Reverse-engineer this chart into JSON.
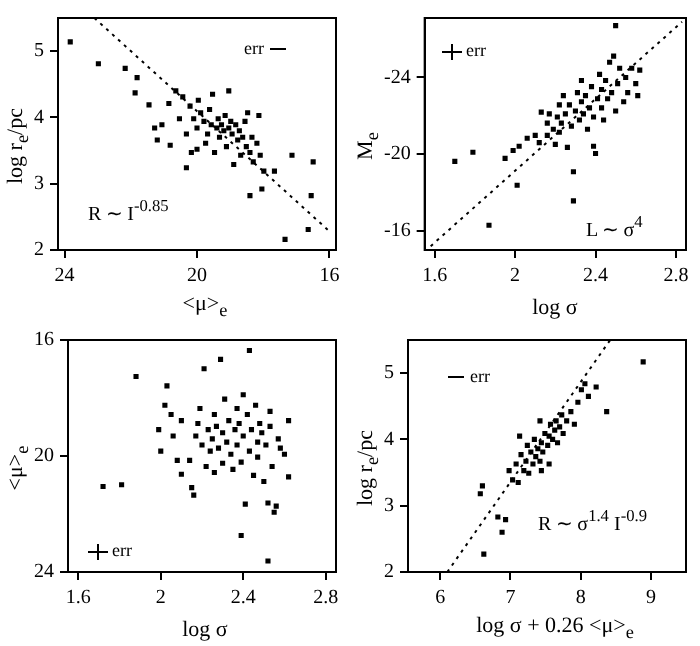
{
  "chart_data": [
    {
      "type": "scatter",
      "xlabel": "<μ>$_{e}$",
      "ylabel": "log r$_{e}$/pc",
      "xlim": [
        24.2,
        15.8
      ],
      "ylim": [
        2,
        5.5
      ],
      "xticks": [
        24,
        20,
        16
      ],
      "yticks": [
        2,
        3,
        4,
        5
      ],
      "marker": "square",
      "annotations": [
        "err",
        "R ∼ I$^{-0.85}$"
      ],
      "series": [
        {
          "color": "#000000",
          "x": [
            23.83,
            22.98,
            22.17,
            21.87,
            21.81,
            21.45,
            21.28,
            21.2,
            21.06,
            20.85,
            20.81,
            20.64,
            20.53,
            20.43,
            20.32,
            20.21,
            20.17,
            20.1,
            20.0,
            19.96,
            19.89,
            19.79,
            19.74,
            19.68,
            19.62,
            19.57,
            19.53,
            19.47,
            19.4,
            19.36,
            19.32,
            19.26,
            19.19,
            19.15,
            19.11,
            19.04,
            18.98,
            18.94,
            18.89,
            18.83,
            18.77,
            18.72,
            18.68,
            18.62,
            18.55,
            18.51,
            18.47,
            18.4,
            18.34,
            18.3,
            18.19,
            18.13,
            18.09,
            18.04,
            17.98,
            17.66,
            18.4,
            17.13,
            16.49,
            17.34,
            16.64,
            16.55,
            19.04,
            20.0,
            20.32
          ],
          "values": [
            5.14,
            4.81,
            4.74,
            4.37,
            4.6,
            4.19,
            3.84,
            3.66,
            3.89,
            4.21,
            3.58,
            4.4,
            3.98,
            4.31,
            3.75,
            4.17,
            3.47,
            3.98,
            3.84,
            4.26,
            4.07,
            3.94,
            3.61,
            3.75,
            4.12,
            3.89,
            4.35,
            3.47,
            3.84,
            3.98,
            3.7,
            3.89,
            3.8,
            4.03,
            3.56,
            3.84,
            3.94,
            3.75,
            3.29,
            3.89,
            3.66,
            3.8,
            3.43,
            3.7,
            3.94,
            3.56,
            4.07,
            3.47,
            3.7,
            3.33,
            3.61,
            4.03,
            3.43,
            2.92,
            3.19,
            3.19,
            2.82,
            3.43,
            3.33,
            2.16,
            2.31,
            2.82,
            4.4,
            3.52,
            3.24
          ]
        },
        {
          "type": "line",
          "color": "#000000",
          "line_style": "dotted",
          "marker": "none",
          "x": [
            23.1,
            15.95
          ],
          "values": [
            5.5,
            2.26
          ]
        }
      ]
    },
    {
      "type": "scatter",
      "xlabel": "log σ",
      "ylabel": "M$_{e}$",
      "xlim": [
        1.55,
        2.85
      ],
      "ylim": [
        -15,
        -27.1
      ],
      "xticks": [
        1.6,
        2,
        2.4,
        2.8
      ],
      "yticks": [
        -16,
        -20,
        -24
      ],
      "marker": "square",
      "annotations": [
        "err",
        "L ∼ σ$^{4}$"
      ],
      "series": [
        {
          "color": "#000000",
          "x": [
            1.7,
            1.79,
            1.87,
            2.01,
            1.95,
            1.99,
            2.02,
            2.06,
            2.1,
            2.12,
            2.13,
            2.16,
            2.16,
            2.17,
            2.19,
            2.2,
            2.21,
            2.22,
            2.22,
            2.23,
            2.24,
            2.25,
            2.26,
            2.27,
            2.28,
            2.29,
            2.29,
            2.3,
            2.31,
            2.32,
            2.33,
            2.33,
            2.34,
            2.35,
            2.36,
            2.37,
            2.38,
            2.39,
            2.39,
            2.4,
            2.41,
            2.42,
            2.43,
            2.43,
            2.44,
            2.45,
            2.46,
            2.47,
            2.48,
            2.49,
            2.5,
            2.5,
            2.51,
            2.52,
            2.54,
            2.55,
            2.56,
            2.58,
            2.6,
            2.61,
            2.62
          ],
          "values": [
            -19.62,
            -20.1,
            -16.29,
            -18.38,
            -19.78,
            -20.19,
            -20.41,
            -20.83,
            -20.98,
            -20.6,
            -22.19,
            -21.62,
            -20.98,
            -22.1,
            -21.3,
            -20.51,
            -21.94,
            -22.57,
            -21.14,
            -21.62,
            -23.05,
            -22.1,
            -20.35,
            -22.57,
            -21.46,
            -17.56,
            -19.08,
            -22.25,
            -23.21,
            -21.78,
            -22.73,
            -23.84,
            -22.1,
            -23.05,
            -21.3,
            -22.41,
            -23.52,
            -21.94,
            -20.41,
            -20.03,
            -22.89,
            -24.16,
            -22.41,
            -23.37,
            -21.78,
            -23.84,
            -22.89,
            -24.79,
            -23.21,
            -25.11,
            -22.25,
            -26.7,
            -23.68,
            -24.48,
            -22.73,
            -24.0,
            -23.21,
            -24.48,
            -23.68,
            -23.05,
            -24.38
          ]
        },
        {
          "type": "line",
          "color": "#000000",
          "line_style": "dotted",
          "marker": "none",
          "x": [
            1.58,
            2.83
          ],
          "values": [
            -15.2,
            -26.9
          ]
        }
      ]
    },
    {
      "type": "scatter",
      "xlabel": "log σ",
      "ylabel": "<μ>$_{e}$",
      "xlim": [
        1.55,
        2.85
      ],
      "ylim": [
        24,
        16
      ],
      "xticks": [
        1.6,
        2,
        2.4,
        2.8
      ],
      "yticks": [
        16,
        20,
        24
      ],
      "marker": "square",
      "annotations": [
        "err"
      ],
      "series": [
        {
          "color": "#000000",
          "x": [
            1.72,
            1.81,
            1.88,
            1.99,
            2.0,
            2.03,
            2.02,
            2.05,
            2.06,
            2.08,
            2.1,
            2.1,
            2.14,
            2.15,
            2.16,
            2.17,
            2.18,
            2.19,
            2.2,
            2.21,
            2.22,
            2.23,
            2.24,
            2.25,
            2.26,
            2.26,
            2.27,
            2.28,
            2.29,
            2.3,
            2.3,
            2.31,
            2.32,
            2.33,
            2.34,
            2.35,
            2.36,
            2.37,
            2.37,
            2.38,
            2.39,
            2.4,
            2.41,
            2.42,
            2.39,
            2.43,
            2.43,
            2.44,
            2.45,
            2.46,
            2.47,
            2.47,
            2.48,
            2.49,
            2.5,
            2.51,
            2.52,
            2.52,
            2.53,
            2.53,
            2.54,
            2.55,
            2.56,
            2.57,
            2.58,
            2.6,
            2.62,
            2.62,
            2.4
          ],
          "values": [
            21.05,
            20.99,
            17.26,
            19.09,
            19.83,
            17.58,
            18.25,
            18.57,
            19.31,
            20.15,
            20.63,
            18.78,
            20.15,
            21.09,
            21.35,
            19.31,
            18.88,
            18.36,
            19.62,
            16.99,
            20.36,
            19.09,
            19.83,
            19.41,
            18.57,
            20.57,
            18.98,
            19.73,
            16.67,
            19.2,
            20.25,
            18.04,
            19.52,
            18.78,
            19.94,
            20.46,
            19.09,
            18.36,
            19.62,
            18.88,
            20.21,
            19.31,
            21.66,
            18.57,
            22.74,
            19.83,
            16.36,
            19.09,
            20.67,
            18.25,
            19.52,
            20.04,
            18.88,
            19.2,
            20.88,
            19.62,
            21.62,
            23.62,
            18.46,
            18.98,
            20.36,
            21.94,
            21.73,
            19.41,
            19.73,
            19.94,
            18.78,
            20.72,
            17.89
          ]
        }
      ]
    },
    {
      "type": "scatter",
      "xlabel": "log σ + 0.26 <μ>$_{e}$",
      "ylabel": "log r$_{e}$/pc",
      "xlim": [
        5.54,
        9.5
      ],
      "ylim": [
        2,
        5.5
      ],
      "xticks": [
        6,
        7,
        8,
        9
      ],
      "yticks": [
        2,
        3,
        4,
        5
      ],
      "marker": "square",
      "annotations": [
        "err",
        "R ∼ σ$^{1.4}$ I$^{-0.9}$"
      ],
      "series": [
        {
          "color": "#000000",
          "x": [
            6.62,
            6.6,
            6.57,
            6.82,
            6.93,
            6.98,
            7.03,
            7.08,
            7.11,
            7.15,
            7.19,
            7.22,
            7.24,
            7.26,
            7.29,
            7.32,
            7.34,
            7.36,
            7.39,
            7.42,
            7.42,
            7.44,
            7.46,
            7.49,
            7.53,
            7.55,
            7.57,
            7.6,
            7.63,
            7.65,
            7.67,
            7.7,
            7.73,
            7.75,
            7.8,
            7.86,
            7.91,
            7.96,
            8.01,
            8.06,
            8.11,
            8.22,
            8.37,
            8.89,
            7.13,
            7.44,
            7.55,
            6.88
          ],
          "values": [
            2.27,
            3.3,
            3.18,
            2.83,
            2.79,
            3.53,
            3.39,
            3.63,
            3.35,
            3.77,
            3.53,
            3.67,
            3.91,
            3.49,
            3.81,
            3.63,
            4.0,
            3.74,
            3.86,
            4.28,
            3.67,
            3.95,
            3.81,
            4.09,
            3.91,
            4.05,
            4.23,
            4.0,
            4.14,
            4.28,
            3.95,
            4.19,
            4.37,
            4.09,
            4.28,
            4.42,
            4.23,
            4.56,
            4.75,
            4.84,
            4.65,
            4.79,
            4.42,
            5.17,
            4.05,
            3.53,
            3.63,
            2.6
          ]
        },
        {
          "type": "line",
          "color": "#000000",
          "line_style": "dotted",
          "marker": "none",
          "x": [
            6.1,
            8.42
          ],
          "values": [
            2,
            5.5
          ]
        }
      ]
    }
  ]
}
